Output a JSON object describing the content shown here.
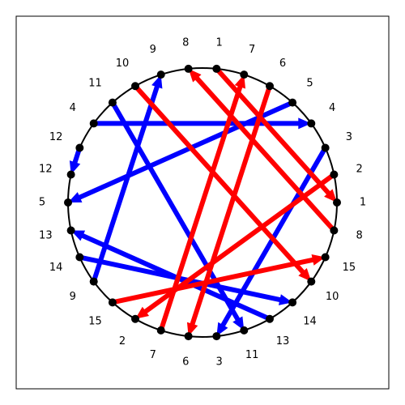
{
  "colors": {
    "blue": "#0000ff",
    "red": "#ff0000"
  },
  "nodes": [
    {
      "id": "n0",
      "label": "1"
    },
    {
      "id": "n1",
      "label": "7"
    },
    {
      "id": "n2",
      "label": "6"
    },
    {
      "id": "n3",
      "label": "5"
    },
    {
      "id": "n4",
      "label": "4"
    },
    {
      "id": "n5",
      "label": "3"
    },
    {
      "id": "n6",
      "label": "2"
    },
    {
      "id": "n7",
      "label": "1"
    },
    {
      "id": "n8",
      "label": "8"
    },
    {
      "id": "n9",
      "label": "15"
    },
    {
      "id": "n10",
      "label": "10"
    },
    {
      "id": "n11",
      "label": "14"
    },
    {
      "id": "n12",
      "label": "13"
    },
    {
      "id": "n13",
      "label": "11"
    },
    {
      "id": "n14",
      "label": "3"
    },
    {
      "id": "n15",
      "label": "6"
    },
    {
      "id": "n16",
      "label": "7"
    },
    {
      "id": "n17",
      "label": "2"
    },
    {
      "id": "n18",
      "label": "15"
    },
    {
      "id": "n19",
      "label": "9"
    },
    {
      "id": "n20",
      "label": "14"
    },
    {
      "id": "n21",
      "label": "13"
    },
    {
      "id": "n22",
      "label": "5"
    },
    {
      "id": "n23",
      "label": "12"
    },
    {
      "id": "n24",
      "label": "12"
    },
    {
      "id": "n25",
      "label": "4"
    },
    {
      "id": "n26",
      "label": "11"
    },
    {
      "id": "n27",
      "label": "10"
    },
    {
      "id": "n28",
      "label": "9"
    },
    {
      "id": "n29",
      "label": "8"
    }
  ],
  "edges": [
    {
      "from": "n25",
      "to": "n4",
      "color": "blue"
    },
    {
      "from": "n3",
      "to": "n22",
      "color": "blue"
    },
    {
      "from": "n24",
      "to": "n23",
      "color": "blue"
    },
    {
      "from": "n19",
      "to": "n28",
      "color": "blue"
    },
    {
      "from": "n20",
      "to": "n11",
      "color": "blue"
    },
    {
      "from": "n12",
      "to": "n21",
      "color": "blue"
    },
    {
      "from": "n26",
      "to": "n13",
      "color": "blue"
    },
    {
      "from": "n5",
      "to": "n14",
      "color": "blue"
    },
    {
      "from": "n27",
      "to": "n10",
      "color": "red"
    },
    {
      "from": "n8",
      "to": "n29",
      "color": "red"
    },
    {
      "from": "n0",
      "to": "n7",
      "color": "red"
    },
    {
      "from": "n6",
      "to": "n17",
      "color": "red"
    },
    {
      "from": "n18",
      "to": "n9",
      "color": "red"
    },
    {
      "from": "n16",
      "to": "n1",
      "color": "red"
    },
    {
      "from": "n2",
      "to": "n15",
      "color": "red"
    }
  ]
}
